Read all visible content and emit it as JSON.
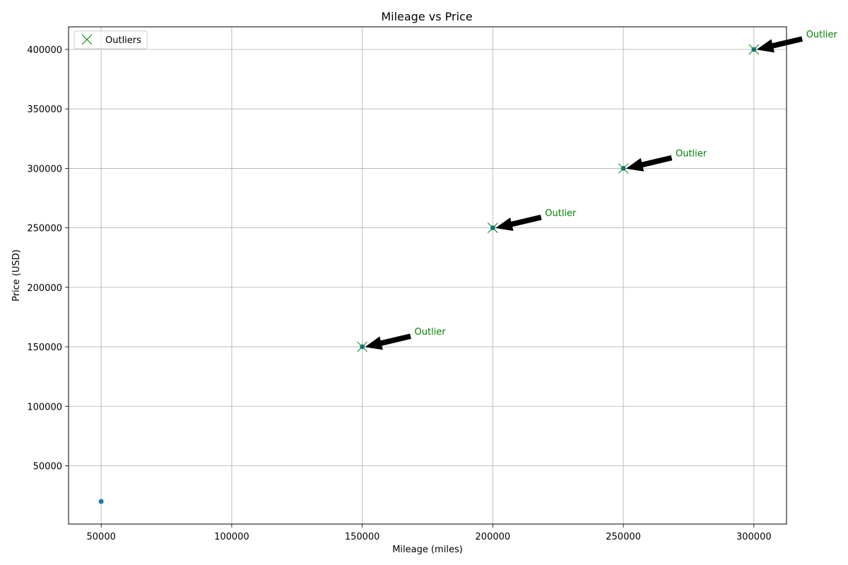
{
  "chart_data": {
    "type": "scatter",
    "title": "Mileage vs Price",
    "xlabel": "Mileage (miles)",
    "ylabel": "Price (USD)",
    "xlim": [
      37500,
      312500
    ],
    "ylim": [
      1000,
      419000
    ],
    "xticks": [
      50000,
      100000,
      150000,
      200000,
      250000,
      300000
    ],
    "yticks": [
      50000,
      100000,
      150000,
      200000,
      250000,
      300000,
      350000,
      400000
    ],
    "grid": true,
    "legend_placement": "top-left",
    "series": [
      {
        "marker": "dot",
        "color": "#1f77b4",
        "points": [
          {
            "x": 50000,
            "y": 20000
          },
          {
            "x": 150000,
            "y": 150000
          },
          {
            "x": 200000,
            "y": 250000
          },
          {
            "x": 250000,
            "y": 300000
          },
          {
            "x": 300000,
            "y": 400000
          }
        ]
      },
      {
        "name": "Outliers",
        "marker": "x",
        "color": "#008000",
        "points": [
          {
            "x": 150000,
            "y": 150000
          },
          {
            "x": 200000,
            "y": 250000
          },
          {
            "x": 250000,
            "y": 300000
          },
          {
            "x": 300000,
            "y": 400000
          }
        ]
      }
    ],
    "annotations": [
      {
        "text": "Outlier",
        "x": 150000,
        "y": 150000,
        "text_x": 170000,
        "text_y": 160000
      },
      {
        "text": "Outlier",
        "x": 200000,
        "y": 250000,
        "text_x": 220000,
        "text_y": 260000
      },
      {
        "text": "Outlier",
        "x": 250000,
        "y": 300000,
        "text_x": 270000,
        "text_y": 310000
      },
      {
        "text": "Outlier",
        "x": 300000,
        "y": 400000,
        "text_x": 320000,
        "text_y": 410000
      }
    ],
    "annotation_color": "#008000"
  }
}
